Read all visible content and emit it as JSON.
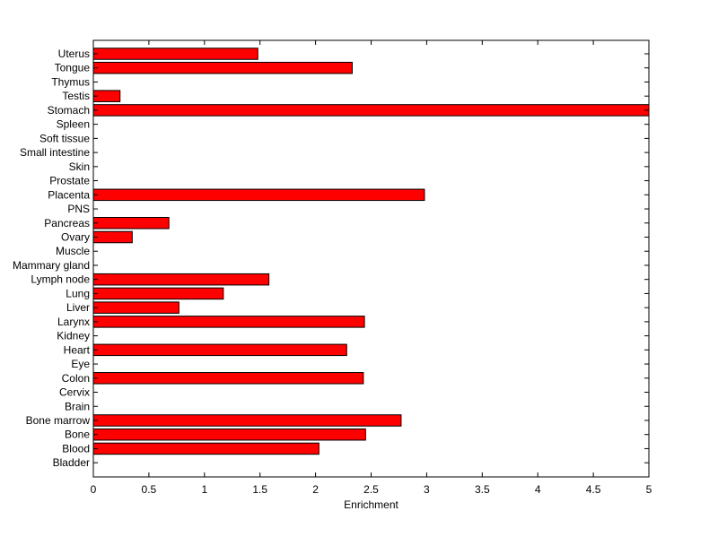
{
  "chart_data": {
    "type": "bar",
    "orientation": "horizontal",
    "xlabel": "Enrichment",
    "ylabel": "",
    "title": "",
    "xlim": [
      0,
      5
    ],
    "xticks": [
      "0",
      "0.5",
      "1",
      "1.5",
      "2",
      "2.5",
      "3",
      "3.5",
      "4",
      "4.5",
      "5"
    ],
    "grid": false,
    "bar_color": "#ff0000",
    "categories": [
      "Uterus",
      "Tongue",
      "Thymus",
      "Testis",
      "Stomach",
      "Spleen",
      "Soft tissue",
      "Small intestine",
      "Skin",
      "Prostate",
      "Placenta",
      "PNS",
      "Pancreas",
      "Ovary",
      "Muscle",
      "Mammary gland",
      "Lymph node",
      "Lung",
      "Liver",
      "Larynx",
      "Kidney",
      "Heart",
      "Eye",
      "Colon",
      "Cervix",
      "Brain",
      "Bone marrow",
      "Bone",
      "Blood",
      "Bladder"
    ],
    "values": [
      1.48,
      2.33,
      0,
      0.24,
      5.0,
      0,
      0,
      0,
      0,
      0,
      2.98,
      0,
      0.68,
      0.35,
      0,
      0,
      1.58,
      1.17,
      0.77,
      2.44,
      0,
      2.28,
      0,
      2.43,
      0,
      0,
      2.77,
      2.45,
      2.03,
      0
    ]
  }
}
